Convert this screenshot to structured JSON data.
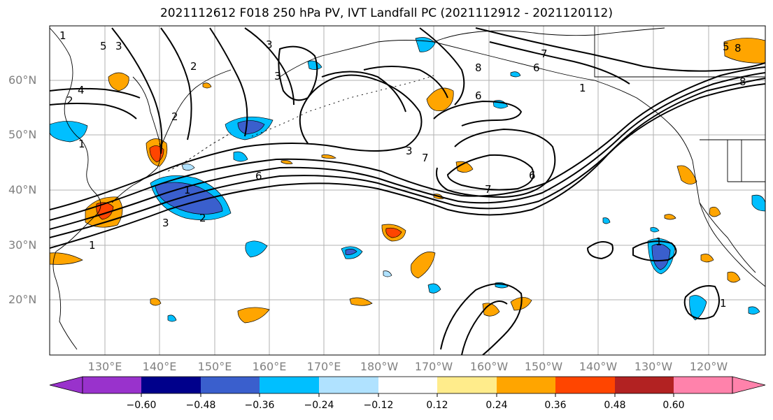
{
  "title": "2021112612 F018 250 hPa PV, IVT Landfall PC (2021112912 - 2021120112)",
  "lat_labels": [
    "60°N",
    "50°N",
    "40°N",
    "30°N",
    "20°N"
  ],
  "lon_labels": [
    "130°E",
    "140°E",
    "150°E",
    "160°E",
    "170°E",
    "180°W",
    "170°W",
    "160°W",
    "150°W",
    "140°W",
    "130°W",
    "120°W"
  ],
  "colorbar": {
    "ticks": [
      "−0.60",
      "−0.48",
      "−0.36",
      "−0.24",
      "−0.12",
      "0.12",
      "0.24",
      "0.36",
      "0.48",
      "0.60"
    ],
    "colors": [
      "#9932CC",
      "#00008B",
      "#3A5FCD",
      "#00BFFF",
      "#B0E2FF",
      "#FFFFFF",
      "#FFEC8B",
      "#FFA500",
      "#FF4500",
      "#B22222",
      "#FF82AB"
    ]
  },
  "contour_labels": [
    "5",
    "3",
    "2",
    "4",
    "2",
    "1",
    "3",
    "3",
    "2",
    "6",
    "1",
    "1",
    "3",
    "2",
    "1",
    "3",
    "6",
    "7",
    "8",
    "7",
    "6",
    "7",
    "6",
    "1",
    "8",
    "1",
    "1",
    "5",
    "8"
  ]
}
